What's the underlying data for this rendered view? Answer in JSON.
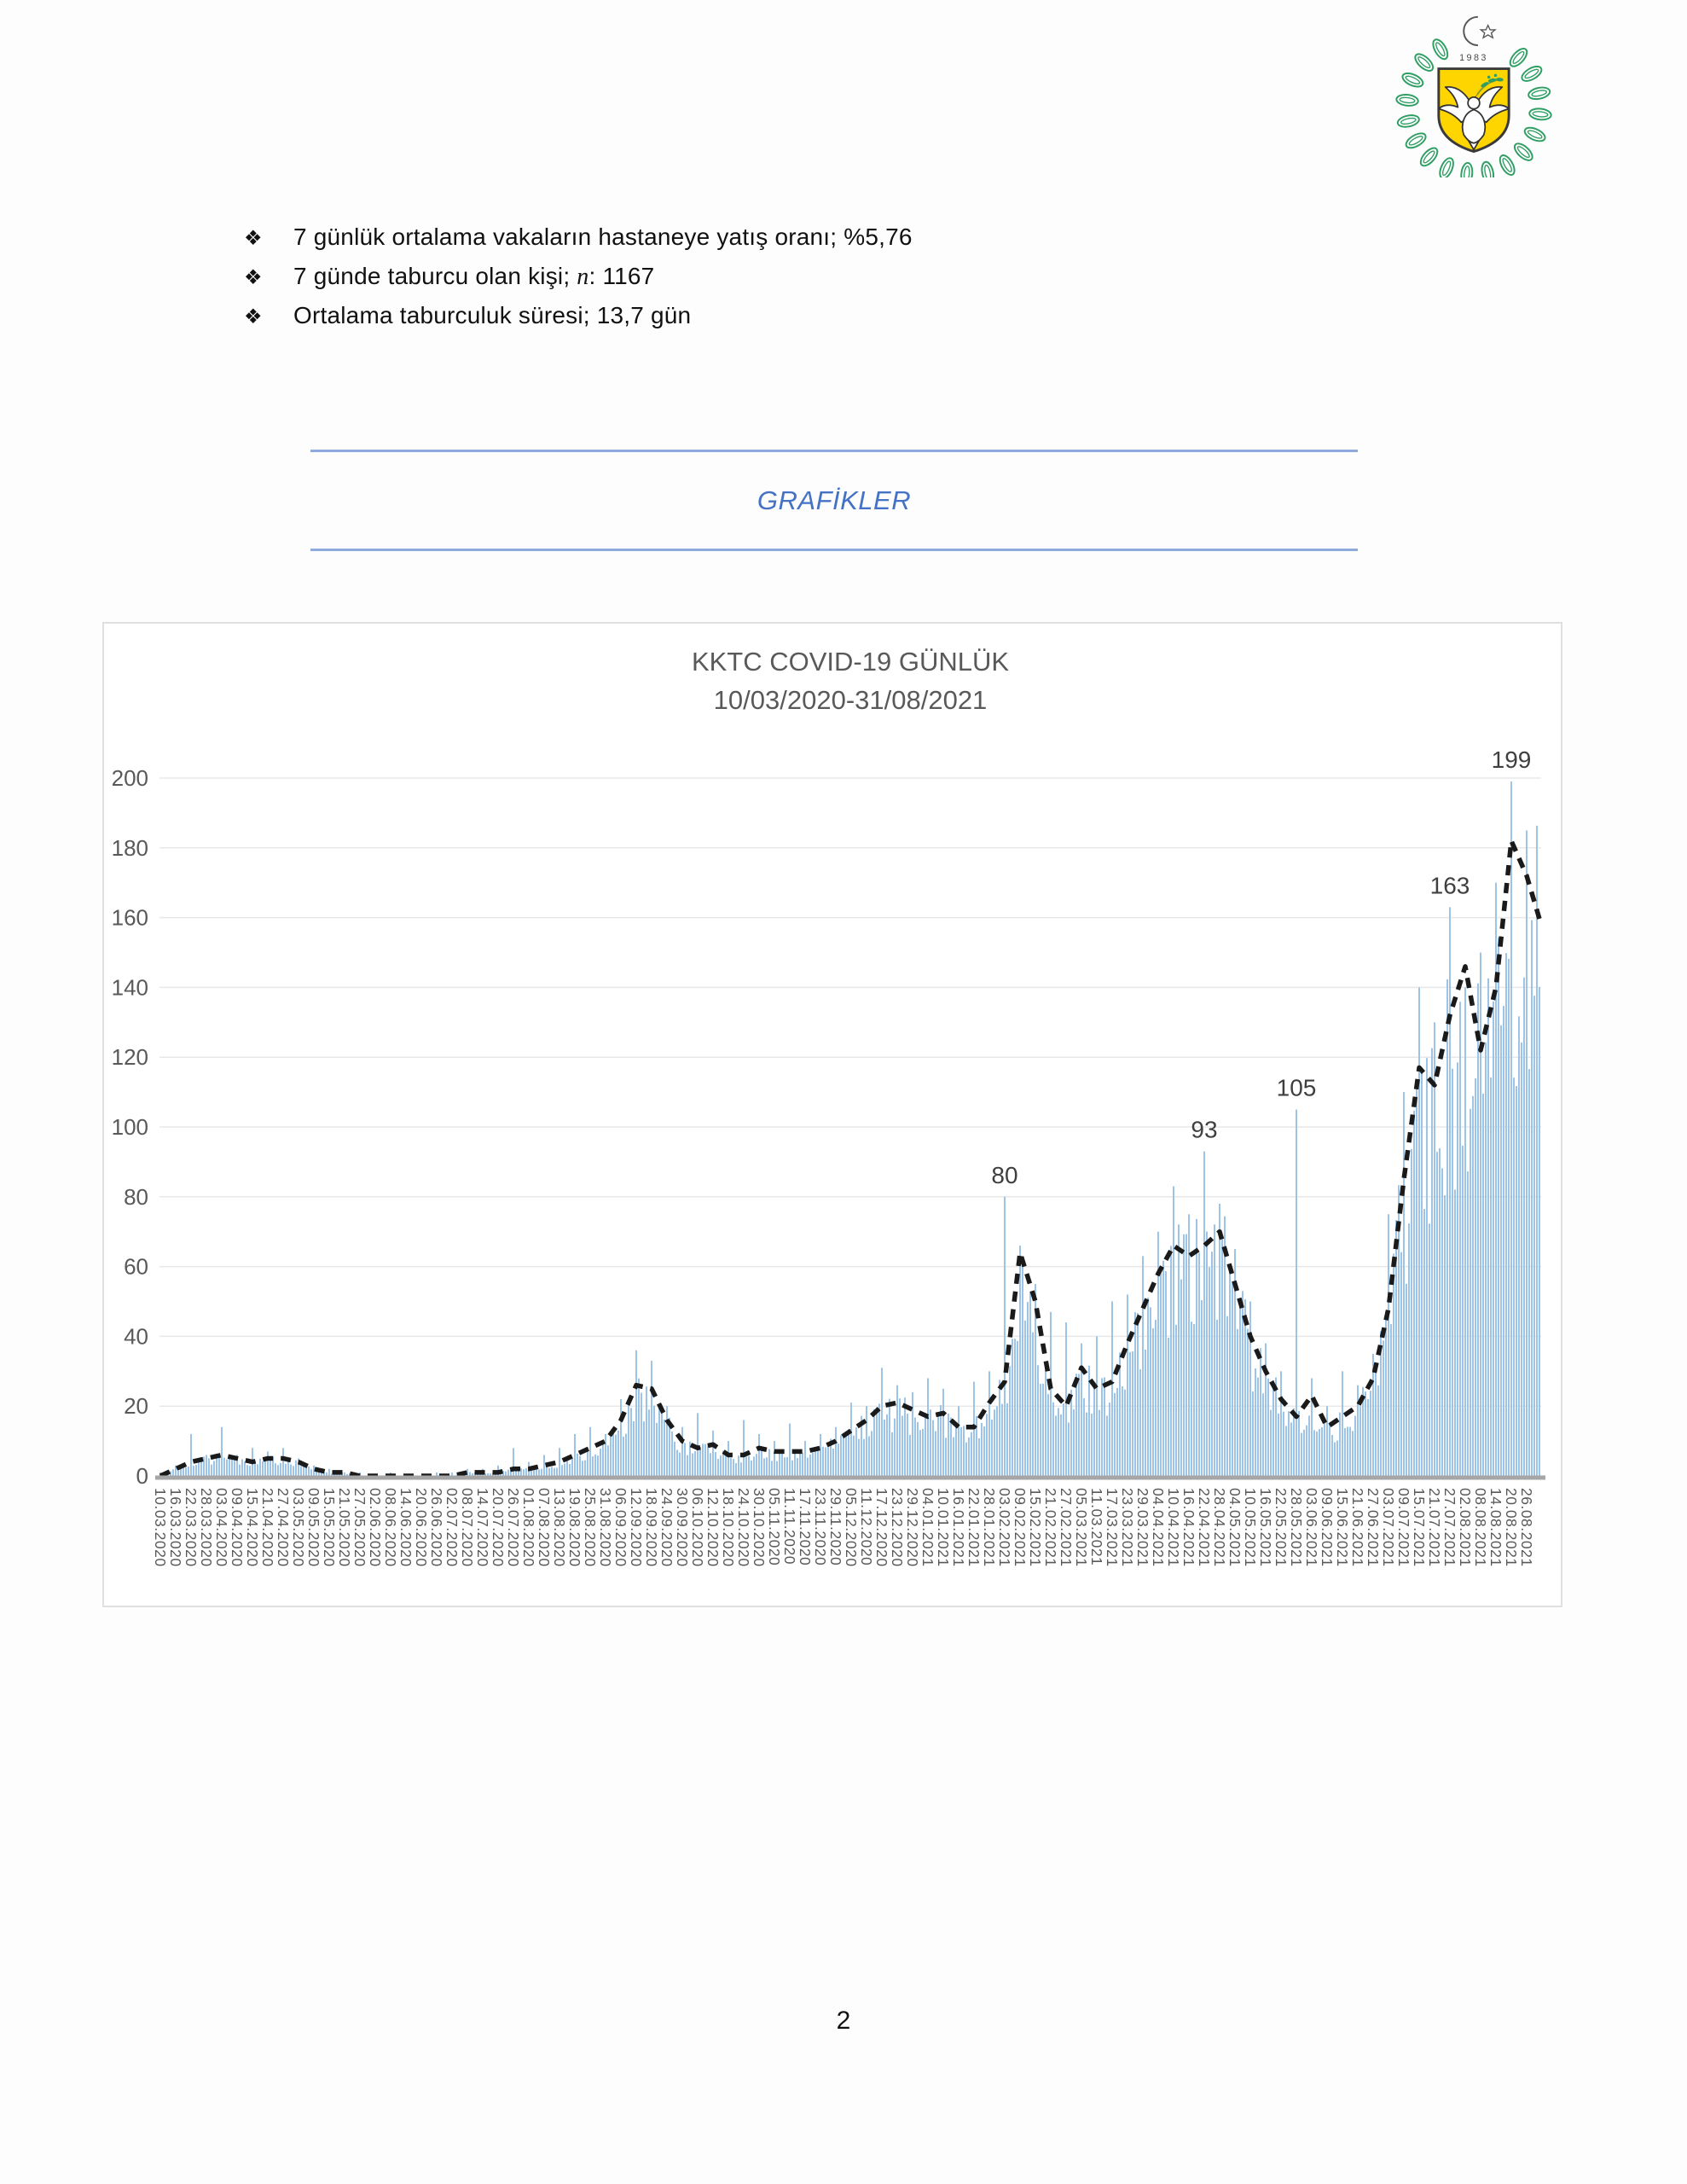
{
  "logo": {
    "year": "1983",
    "wreath_green": "#2E9E63",
    "shield_yellow": "#FFD500"
  },
  "bullets": {
    "marker": "❖",
    "items": [
      {
        "pre": "7 günlük ortalama vakaların hastaneye yatış oranı; %5,76",
        "em": "",
        "post": ""
      },
      {
        "pre": "7 günde taburcu olan kişi; ",
        "em": "n",
        "post": ": 1167"
      },
      {
        "pre": "Ortalama taburculuk süresi; 13,7 gün",
        "em": "",
        "post": ""
      }
    ]
  },
  "section_heading": {
    "label": "GRAFİKLER"
  },
  "page": {
    "number": "2"
  },
  "chart_data": {
    "type": "bar",
    "title": "KKTC COVID-19 GÜNLÜK",
    "subtitle": "10/03/2020-31/08/2021",
    "ylim": [
      0,
      200
    ],
    "ytick_step": 20,
    "grid": true,
    "legend": "none",
    "categories": [
      "10.03.2020",
      "16.03.2020",
      "22.03.2020",
      "28.03.2020",
      "03.04.2020",
      "09.04.2020",
      "15.04.2020",
      "21.04.2020",
      "27.04.2020",
      "03.05.2020",
      "09.05.2020",
      "15.05.2020",
      "21.05.2020",
      "27.05.2020",
      "02.06.2020",
      "08.06.2020",
      "14.06.2020",
      "20.06.2020",
      "26.06.2020",
      "02.07.2020",
      "08.07.2020",
      "14.07.2020",
      "20.07.2020",
      "26.07.2020",
      "01.08.2020",
      "07.08.2020",
      "13.08.2020",
      "19.08.2020",
      "25.08.2020",
      "31.08.2020",
      "06.09.2020",
      "12.09.2020",
      "18.09.2020",
      "24.09.2020",
      "30.09.2020",
      "06.10.2020",
      "12.10.2020",
      "18.10.2020",
      "24.10.2020",
      "30.10.2020",
      "05.11.2020",
      "11.11.2020",
      "17.11.2020",
      "23.11.2020",
      "29.11.2020",
      "05.12.2020",
      "11.12.2020",
      "17.12.2020",
      "23.12.2020",
      "29.12.2020",
      "04.01.2021",
      "10.01.2021",
      "16.01.2021",
      "22.01.2021",
      "28.01.2021",
      "03.02.2021",
      "09.02.2021",
      "15.02.2021",
      "21.02.2021",
      "27.02.2021",
      "05.03.2021",
      "11.03.2021",
      "17.03.2021",
      "23.03.2021",
      "29.03.2021",
      "04.04.2021",
      "10.04.2021",
      "16.04.2021",
      "22.04.2021",
      "28.04.2021",
      "04.05.2021",
      "10.05.2021",
      "16.05.2021",
      "22.05.2021",
      "28.05.2021",
      "03.06.2021",
      "09.06.2021",
      "15.06.2021",
      "21.06.2021",
      "27.06.2021",
      "03.07.2021",
      "09.07.2021",
      "15.07.2021",
      "21.07.2021",
      "27.07.2021",
      "02.08.2021",
      "08.08.2021",
      "14.08.2021",
      "20.08.2021",
      "26.08.2021"
    ],
    "series": [
      {
        "name": "daily-cases-bars",
        "type": "bar",
        "color": "#9DC3E6",
        "values": [
          1,
          3,
          12,
          6,
          14,
          6,
          8,
          7,
          8,
          5,
          3,
          2,
          1,
          1,
          0,
          1,
          0,
          0,
          1,
          1,
          2,
          2,
          3,
          8,
          4,
          6,
          8,
          12,
          14,
          12,
          22,
          36,
          33,
          20,
          14,
          18,
          13,
          10,
          16,
          12,
          10,
          15,
          10,
          12,
          14,
          21,
          20,
          31,
          26,
          24,
          28,
          25,
          20,
          27,
          30,
          80,
          66,
          55,
          47,
          44,
          38,
          40,
          50,
          52,
          63,
          70,
          83,
          75,
          93,
          78,
          65,
          50,
          38,
          30,
          105,
          28,
          20,
          30,
          26,
          35,
          75,
          110,
          140,
          130,
          163,
          140,
          150,
          170,
          199,
          185
        ]
      },
      {
        "name": "7-day-average-line",
        "type": "line",
        "style": "dashed",
        "color": "#1a1a1a",
        "values": [
          0,
          2,
          4,
          5,
          6,
          5,
          4,
          5,
          5,
          4,
          2,
          1,
          1,
          0,
          0,
          0,
          0,
          0,
          0,
          0,
          1,
          1,
          1,
          2,
          2,
          3,
          4,
          6,
          8,
          10,
          16,
          26,
          25,
          16,
          10,
          8,
          9,
          6,
          6,
          8,
          7,
          7,
          7,
          8,
          10,
          13,
          16,
          20,
          21,
          19,
          17,
          18,
          14,
          14,
          21,
          27,
          64,
          50,
          25,
          20,
          31,
          25,
          27,
          38,
          48,
          58,
          66,
          63,
          66,
          70,
          55,
          40,
          30,
          22,
          17,
          23,
          14,
          17,
          20,
          28,
          48,
          85,
          117,
          112,
          132,
          146,
          122,
          140,
          182,
          172
        ]
      }
    ],
    "right_edge": {
      "bar": 140,
      "line": 158
    },
    "annotations": [
      {
        "label": "80",
        "index": 55
      },
      {
        "label": "93",
        "index": 68
      },
      {
        "label": "105",
        "index": 74
      },
      {
        "label": "163",
        "index": 84
      },
      {
        "label": "199",
        "index": 88
      }
    ]
  }
}
